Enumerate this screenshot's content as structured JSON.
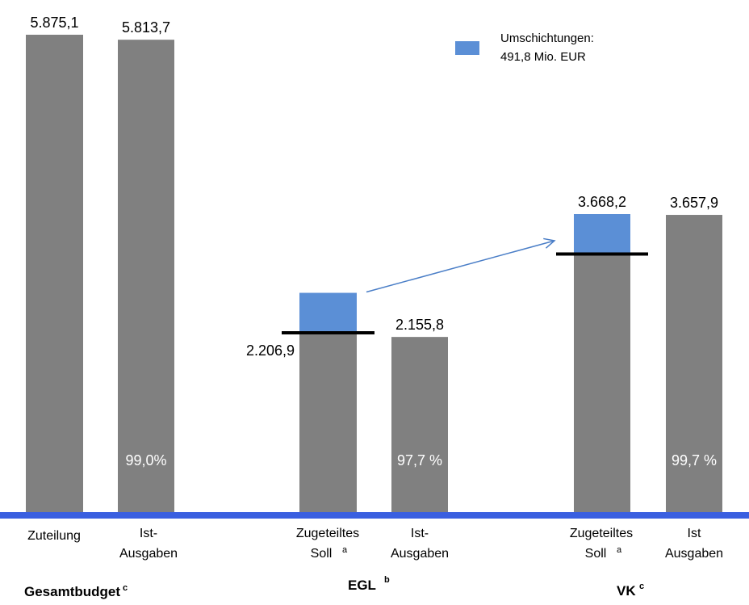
{
  "chart_data": {
    "type": "bar",
    "unit": "Mio. EUR",
    "bars": [
      {
        "id": "gesamt-zuteilung",
        "group": "Gesamtbudget",
        "label_lines": [
          "Zuteilung"
        ],
        "label_sup": "",
        "value": 5875.1,
        "value_label": "5.875,1",
        "base_value": null,
        "umschichtung_value": null,
        "percent_label": ""
      },
      {
        "id": "gesamt-ist",
        "group": "Gesamtbudget",
        "label_lines": [
          "Ist-",
          "Ausgaben"
        ],
        "label_sup": "",
        "value": 5813.7,
        "value_label": "5.813,7",
        "base_value": null,
        "umschichtung_value": null,
        "percent_label": "99,0%"
      },
      {
        "id": "egl-soll",
        "group": "EGL",
        "label_lines": [
          "Zugeteiltes",
          "Soll"
        ],
        "label_sup": "a",
        "value": 2698.7,
        "value_label": "",
        "base_value": 2206.9,
        "base_value_label": "2.206,9",
        "umschichtung_value": 491.8,
        "percent_label": ""
      },
      {
        "id": "egl-ist",
        "group": "EGL",
        "label_lines": [
          "Ist-",
          "Ausgaben"
        ],
        "label_sup": "",
        "value": 2155.8,
        "value_label": "2.155,8",
        "base_value": null,
        "umschichtung_value": null,
        "percent_label": "97,7 %"
      },
      {
        "id": "vk-soll",
        "group": "VK",
        "label_lines": [
          "Zugeteiltes",
          "Soll"
        ],
        "label_sup": "a",
        "value": 3668.2,
        "value_label": "3.668,2",
        "base_value": 3176.4,
        "umschichtung_value": 491.8,
        "percent_label": ""
      },
      {
        "id": "vk-ist",
        "group": "VK",
        "label_lines": [
          "Ist",
          "Ausgaben"
        ],
        "label_sup": "",
        "value": 3657.9,
        "value_label": "3.657,9",
        "base_value": null,
        "umschichtung_value": null,
        "percent_label": "99,7 %"
      }
    ],
    "groups": [
      {
        "name": "Gesamtbudget",
        "sup": "c"
      },
      {
        "name": "EGL",
        "sup": "b"
      },
      {
        "name": "VK",
        "sup": "c"
      }
    ],
    "legend": {
      "label_line1": "Umschichtungen:",
      "label_line2": "491,8 Mio. EUR",
      "placement": "top-right"
    },
    "arrow": {
      "from": "egl-soll",
      "to": "vk-soll",
      "meaning": "Umschichtungen"
    },
    "ylim": [
      0,
      5875.1
    ],
    "grid": false,
    "colors": {
      "bar": "#808080",
      "umschichtung": "#5b8fd6",
      "baseline": "#3a5fe0",
      "marker": "#000000",
      "arrow": "#4a7ec7",
      "text": "#000000",
      "percent_text": "#ffffff"
    }
  }
}
